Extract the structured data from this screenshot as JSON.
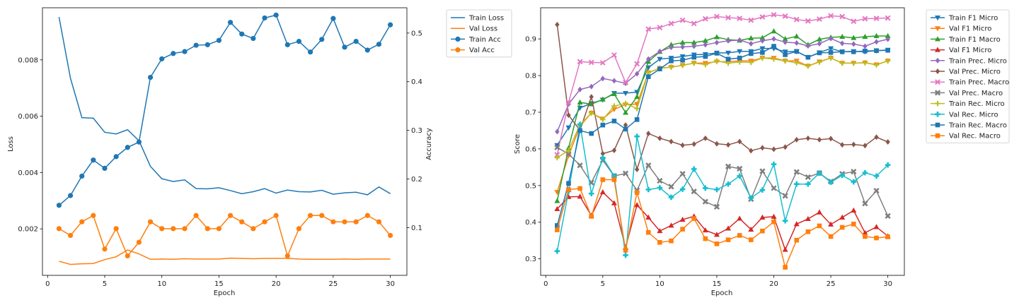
{
  "chart_data": [
    {
      "type": "line",
      "xlabel": "Epoch",
      "ylabel": "Loss",
      "y2label": "Accuracy",
      "xlim": [
        -0.45,
        31.45
      ],
      "ylim": [
        0.00035,
        0.00985
      ],
      "y2lim": [
        0.002,
        0.552
      ],
      "xticks": [
        0,
        5,
        10,
        15,
        20,
        25,
        30
      ],
      "yticks": [
        0.002,
        0.004,
        0.006,
        0.008
      ],
      "y2ticks": [
        0.1,
        0.2,
        0.3,
        0.4,
        0.5
      ],
      "legend_position": "outside-right",
      "x": [
        1,
        2,
        3,
        4,
        5,
        6,
        7,
        8,
        9,
        10,
        11,
        12,
        13,
        14,
        15,
        16,
        17,
        18,
        19,
        20,
        21,
        22,
        23,
        24,
        25,
        26,
        27,
        28,
        29,
        30
      ],
      "series": [
        {
          "name": "Train Loss",
          "axis": "left",
          "color": "#1f77b4",
          "marker": "none",
          "values": [
            0.00952,
            0.00735,
            0.00595,
            0.00593,
            0.00543,
            0.00537,
            0.00552,
            0.00513,
            0.00422,
            0.00378,
            0.00368,
            0.00374,
            0.00343,
            0.00342,
            0.00346,
            0.00336,
            0.00325,
            0.00332,
            0.00343,
            0.00327,
            0.00338,
            0.00332,
            0.00331,
            0.00337,
            0.00323,
            0.00328,
            0.0033,
            0.00321,
            0.00349,
            0.00325
          ]
        },
        {
          "name": "Val Loss",
          "axis": "left",
          "color": "#ff7f0e",
          "marker": "none",
          "values": [
            0.00085,
            0.00074,
            0.00076,
            0.00077,
            0.00091,
            0.00101,
            0.00125,
            0.00111,
            0.00092,
            0.00093,
            0.00092,
            0.00094,
            0.00093,
            0.00093,
            0.00093,
            0.00096,
            0.00095,
            0.00094,
            0.00095,
            0.00095,
            0.00095,
            0.00093,
            0.00092,
            0.00092,
            0.00092,
            0.00093,
            0.00092,
            0.00093,
            0.00093,
            0.00093
          ]
        },
        {
          "name": "Train Acc",
          "axis": "right",
          "color": "#1f77b4",
          "marker": "circle",
          "values": [
            0.146,
            0.166,
            0.206,
            0.239,
            0.222,
            0.246,
            0.265,
            0.276,
            0.409,
            0.447,
            0.458,
            0.462,
            0.475,
            0.476,
            0.485,
            0.522,
            0.498,
            0.489,
            0.531,
            0.537,
            0.476,
            0.483,
            0.461,
            0.487,
            0.53,
            0.471,
            0.483,
            0.465,
            0.477,
            0.517
          ]
        },
        {
          "name": "Val Acc",
          "axis": "right",
          "color": "#ff7f0e",
          "marker": "circle",
          "values": [
            0.098,
            0.084,
            0.112,
            0.125,
            0.056,
            0.098,
            0.042,
            0.07,
            0.112,
            0.098,
            0.098,
            0.098,
            0.125,
            0.098,
            0.098,
            0.125,
            0.112,
            0.098,
            0.112,
            0.125,
            0.042,
            0.098,
            0.125,
            0.125,
            0.112,
            0.112,
            0.112,
            0.125,
            0.112,
            0.084
          ]
        }
      ]
    },
    {
      "type": "line",
      "xlabel": "Epoch",
      "ylabel": "Score",
      "xlim": [
        -0.45,
        31.45
      ],
      "ylim": [
        0.255,
        0.985
      ],
      "xticks": [
        0,
        5,
        10,
        15,
        20,
        25,
        30
      ],
      "yticks": [
        0.3,
        0.4,
        0.5,
        0.6,
        0.7,
        0.8,
        0.9
      ],
      "legend_position": "outside-right",
      "x": [
        1,
        2,
        3,
        4,
        5,
        6,
        7,
        8,
        9,
        10,
        11,
        12,
        13,
        14,
        15,
        16,
        17,
        18,
        19,
        20,
        21,
        22,
        23,
        24,
        25,
        26,
        27,
        28,
        29,
        30
      ],
      "series": [
        {
          "name": "Train F1 Micro",
          "color": "#1f77b4",
          "marker": "tri-down",
          "values": [
            0.61,
            0.658,
            0.712,
            0.724,
            0.734,
            0.752,
            0.752,
            0.755,
            0.822,
            0.845,
            0.848,
            0.852,
            0.857,
            0.858,
            0.862,
            0.862,
            0.866,
            0.866,
            0.874,
            0.874,
            0.865,
            0.866,
            0.85,
            0.863,
            0.874,
            0.865,
            0.866,
            0.865,
            0.868,
            0.87
          ]
        },
        {
          "name": "Val F1 Micro",
          "color": "#ff7f0e",
          "marker": "tri-down",
          "values": [
            0.482,
            0.582,
            0.662,
            0.698,
            0.682,
            0.708,
            0.721,
            0.722,
            0.808,
            0.82,
            0.823,
            0.828,
            0.834,
            0.834,
            0.838,
            0.838,
            0.84,
            0.84,
            0.848,
            0.848,
            0.84,
            0.84,
            0.826,
            0.838,
            0.848,
            0.834,
            0.834,
            0.835,
            0.83,
            0.84
          ]
        },
        {
          "name": "Train F1 Macro",
          "color": "#2ca02c",
          "marker": "tri-up",
          "values": [
            0.458,
            0.602,
            0.727,
            0.722,
            0.735,
            0.75,
            0.699,
            0.742,
            0.838,
            0.865,
            0.884,
            0.89,
            0.89,
            0.895,
            0.905,
            0.898,
            0.896,
            0.902,
            0.903,
            0.921,
            0.9,
            0.907,
            0.884,
            0.899,
            0.904,
            0.906,
            0.903,
            0.906,
            0.908,
            0.908
          ]
        },
        {
          "name": "Val F1 Micro",
          "color": "#d62728",
          "marker": "tri-up",
          "values": [
            0.436,
            0.469,
            0.47,
            0.418,
            0.482,
            0.452,
            0.331,
            0.447,
            0.413,
            0.376,
            0.391,
            0.407,
            0.416,
            0.378,
            0.366,
            0.383,
            0.41,
            0.38,
            0.413,
            0.415,
            0.325,
            0.395,
            0.409,
            0.427,
            0.394,
            0.413,
            0.432,
            0.371,
            0.387,
            0.362
          ]
        },
        {
          "name": "Train Prec. Micro",
          "color": "#9467bd",
          "marker": "diamond",
          "values": [
            0.647,
            0.722,
            0.762,
            0.77,
            0.792,
            0.786,
            0.779,
            0.805,
            0.845,
            0.866,
            0.877,
            0.878,
            0.88,
            0.884,
            0.89,
            0.895,
            0.897,
            0.887,
            0.895,
            0.9,
            0.891,
            0.889,
            0.881,
            0.887,
            0.901,
            0.888,
            0.886,
            0.88,
            0.892,
            0.899
          ]
        },
        {
          "name": "Val Prec. Micro",
          "color": "#8c564b",
          "marker": "diamond",
          "values": [
            0.939,
            0.692,
            0.651,
            0.742,
            0.587,
            0.596,
            0.665,
            0.544,
            0.642,
            0.629,
            0.62,
            0.61,
            0.613,
            0.629,
            0.614,
            0.611,
            0.62,
            0.595,
            0.603,
            0.599,
            0.605,
            0.625,
            0.629,
            0.625,
            0.628,
            0.611,
            0.612,
            0.609,
            0.632,
            0.619
          ]
        },
        {
          "name": "Train Prec. Macro",
          "color": "#e377c2",
          "marker": "x-thin",
          "values": [
            0.584,
            0.727,
            0.838,
            0.836,
            0.835,
            0.856,
            0.781,
            0.832,
            0.927,
            0.931,
            0.942,
            0.951,
            0.942,
            0.955,
            0.961,
            0.958,
            0.956,
            0.951,
            0.96,
            0.966,
            0.962,
            0.953,
            0.949,
            0.954,
            0.963,
            0.961,
            0.948,
            0.955,
            0.956,
            0.957
          ]
        },
        {
          "name": "Val Prec. Macro",
          "color": "#7f7f7f",
          "marker": "x-bold",
          "values": [
            0.604,
            0.586,
            0.555,
            0.508,
            0.569,
            0.526,
            0.533,
            0.487,
            0.555,
            0.513,
            0.497,
            0.532,
            0.484,
            0.456,
            0.442,
            0.552,
            0.546,
            0.463,
            0.539,
            0.493,
            0.472,
            0.537,
            0.523,
            0.534,
            0.511,
            0.532,
            0.538,
            0.451,
            0.486,
            0.417
          ]
        },
        {
          "name": "Train Rec. Micro",
          "color": "#bcbd22",
          "marker": "plus",
          "values": [
            0.576,
            0.596,
            0.666,
            0.698,
            0.68,
            0.717,
            0.724,
            0.71,
            0.808,
            0.82,
            0.823,
            0.828,
            0.834,
            0.83,
            0.84,
            0.834,
            0.837,
            0.836,
            0.848,
            0.845,
            0.84,
            0.835,
            0.826,
            0.837,
            0.848,
            0.834,
            0.834,
            0.835,
            0.829,
            0.84
          ]
        },
        {
          "name": "Val Rec. Micro",
          "color": "#17becf",
          "marker": "plus-bold",
          "values": [
            0.321,
            0.484,
            0.667,
            0.478,
            0.576,
            0.526,
            0.31,
            0.634,
            0.489,
            0.494,
            0.468,
            0.49,
            0.545,
            0.493,
            0.489,
            0.504,
            0.526,
            0.466,
            0.488,
            0.558,
            0.404,
            0.504,
            0.504,
            0.534,
            0.509,
            0.528,
            0.51,
            0.535,
            0.526,
            0.556
          ]
        },
        {
          "name": "Train Rec. Macro",
          "color": "#1f77b4",
          "marker": "square",
          "values": [
            0.391,
            0.506,
            0.65,
            0.642,
            0.665,
            0.676,
            0.654,
            0.68,
            0.797,
            0.818,
            0.84,
            0.842,
            0.85,
            0.852,
            0.861,
            0.845,
            0.848,
            0.86,
            0.863,
            0.88,
            0.857,
            0.866,
            0.85,
            0.862,
            0.863,
            0.865,
            0.865,
            0.867,
            0.868,
            0.869
          ]
        },
        {
          "name": "Val Rec. Macro",
          "color": "#ff7f0e",
          "marker": "square",
          "values": [
            0.379,
            0.489,
            0.492,
            0.416,
            0.516,
            0.516,
            0.324,
            0.481,
            0.372,
            0.345,
            0.349,
            0.381,
            0.41,
            0.355,
            0.341,
            0.352,
            0.364,
            0.352,
            0.376,
            0.401,
            0.277,
            0.351,
            0.374,
            0.39,
            0.361,
            0.386,
            0.395,
            0.361,
            0.357,
            0.36
          ]
        }
      ]
    }
  ]
}
